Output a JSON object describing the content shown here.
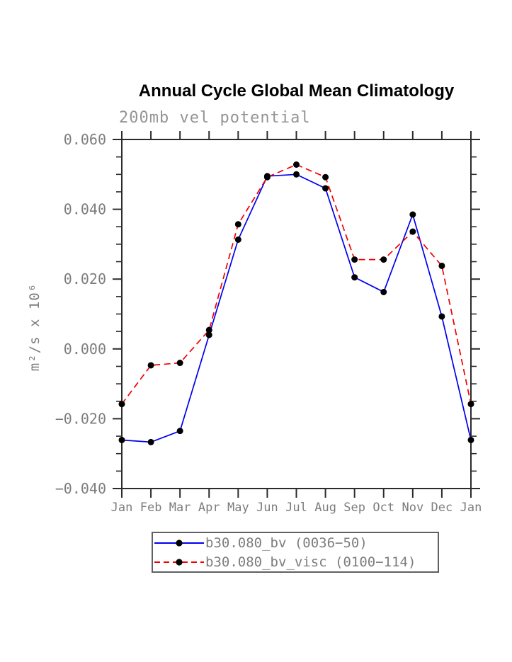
{
  "chart_data": {
    "type": "line",
    "title": "Annual Cycle Global Mean Climatology",
    "subtitle": "200mb vel potential",
    "ylabel": "m²/s x 10⁶",
    "xlabel": "",
    "categories": [
      "Jan",
      "Feb",
      "Mar",
      "Apr",
      "May",
      "Jun",
      "Jul",
      "Aug",
      "Sep",
      "Oct",
      "Nov",
      "Dec",
      "Jan"
    ],
    "ylim": [
      -0.04,
      0.06
    ],
    "ytick_values": [
      0.06,
      0.04,
      0.02,
      0.0,
      -0.02,
      -0.04
    ],
    "ytick_labels": [
      "0.060",
      "0.040",
      "0.020",
      "0.000",
      "−0.020",
      "−0.040"
    ],
    "yminor_step": 0.005,
    "grid": false,
    "legend_position": "bottom-center",
    "series": [
      {
        "name": "b30.080_bv (0036−50)",
        "color": "#0000ee",
        "line_style": "solid",
        "marker": "filled-circle",
        "marker_color": "#000000",
        "values": [
          -0.0261,
          -0.0267,
          -0.0235,
          0.004,
          0.0313,
          0.0495,
          0.05,
          0.046,
          0.0205,
          0.0163,
          0.0385,
          0.0093,
          -0.0261
        ]
      },
      {
        "name": "b30.080_bv_visc (0100−114)",
        "color": "#f10000",
        "line_style": "dashed",
        "marker": "filled-circle",
        "marker_color": "#000000",
        "values": [
          -0.0158,
          -0.0047,
          -0.004,
          0.0054,
          0.0357,
          0.0492,
          0.0528,
          0.0492,
          0.0256,
          0.0256,
          0.0336,
          0.0238,
          -0.0158
        ]
      }
    ]
  },
  "colors": {
    "background": "#ffffff",
    "axis": "#2b2b2b",
    "tick_text": "#7d7d7d",
    "subtitle_text": "#949494",
    "title_text": "#000000",
    "legend_border": "#606060"
  }
}
